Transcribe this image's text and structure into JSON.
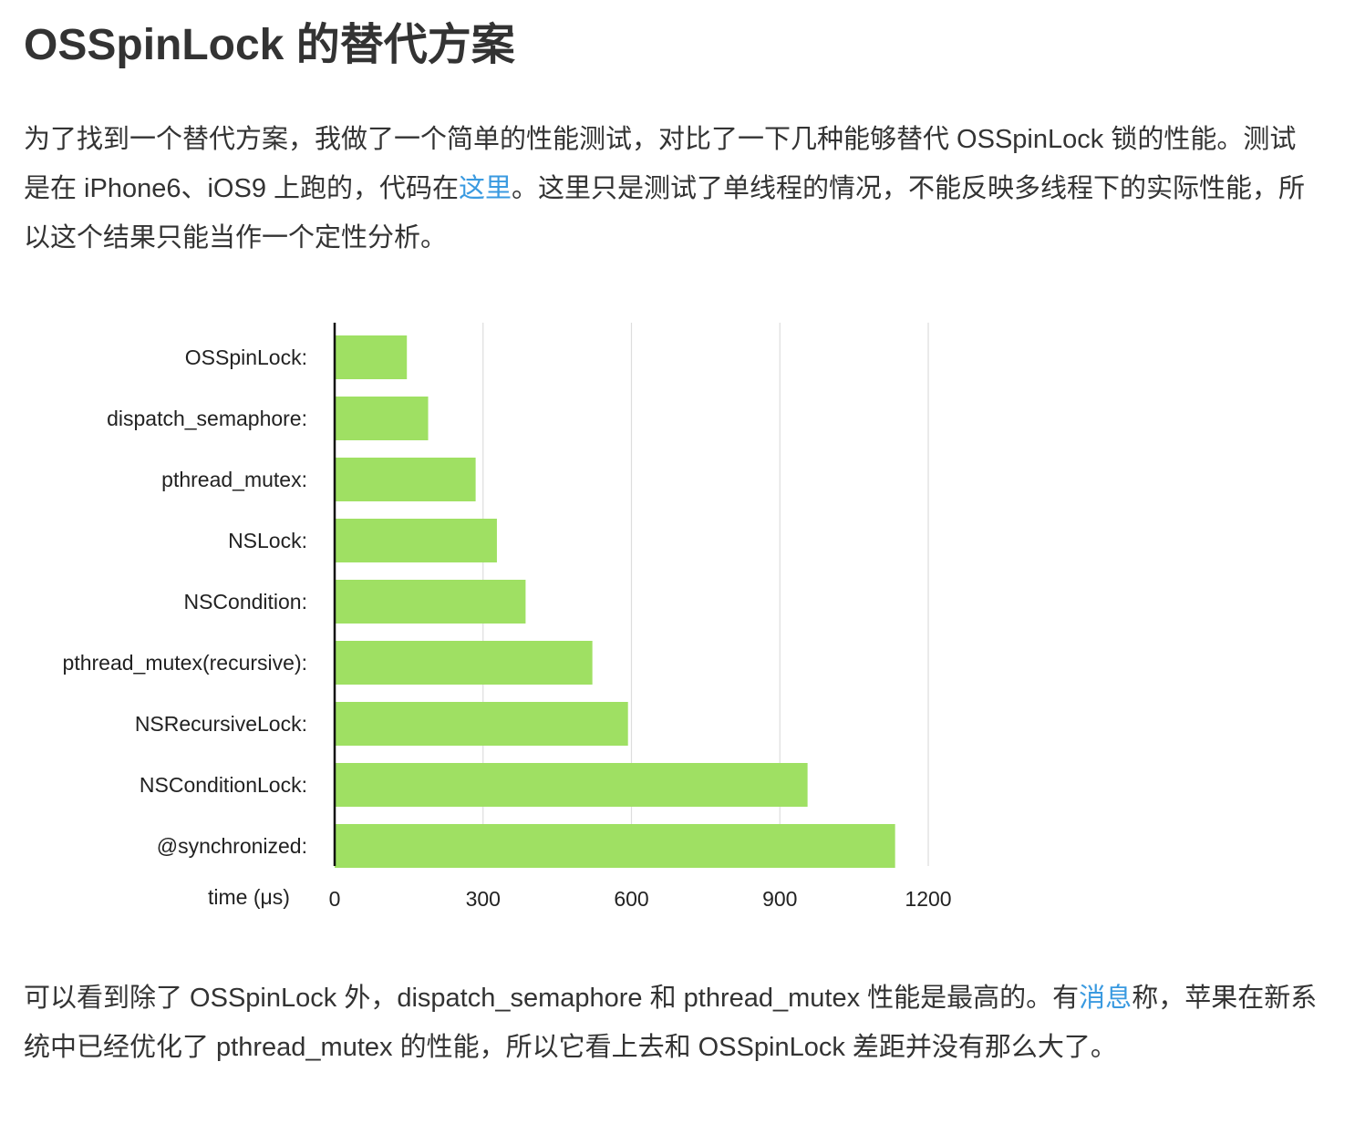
{
  "title": "OSSpinLock 的替代方案",
  "intro": {
    "before_link": "为了找到一个替代方案，我做了一个简单的性能测试，对比了一下几种能够替代 OSSpinLock 锁的性能。测试是在 iPhone6、iOS9 上跑的，代码在",
    "link": "这里",
    "after_link": "。这里只是测试了单线程的情况，不能反映多线程下的实际性能，所以这个结果只能当作一个定性分析。"
  },
  "conclusion": {
    "before_link": "可以看到除了 OSSpinLock 外，dispatch_semaphore 和 pthread_mutex 性能是最高的。有",
    "link": "消息",
    "after_link": "称，苹果在新系统中已经优化了 pthread_mutex 的性能，所以它看上去和 OSSpinLock 差距并没有那么大了。"
  },
  "chart_data": {
    "type": "bar",
    "orientation": "horizontal",
    "categories": [
      "OSSpinLock:",
      "dispatch_semaphore:",
      "pthread_mutex:",
      "NSLock:",
      "NSCondition:",
      "pthread_mutex(recursive):",
      "NSRecursiveLock:",
      "NSConditionLock:",
      "@synchronized:"
    ],
    "values": [
      146,
      189,
      285,
      328,
      386,
      521,
      593,
      956,
      1133
    ],
    "xlabel": "time (μs)",
    "xticks": [
      "0",
      "300",
      "600",
      "900",
      "1200"
    ],
    "xlim": [
      0,
      1200
    ],
    "grid": true,
    "bar_color": "#9fe063",
    "grid_color": "#dddddd",
    "axis_color": "#111111"
  },
  "colors": {
    "link": "#3a9ae0",
    "text": "#333333"
  }
}
